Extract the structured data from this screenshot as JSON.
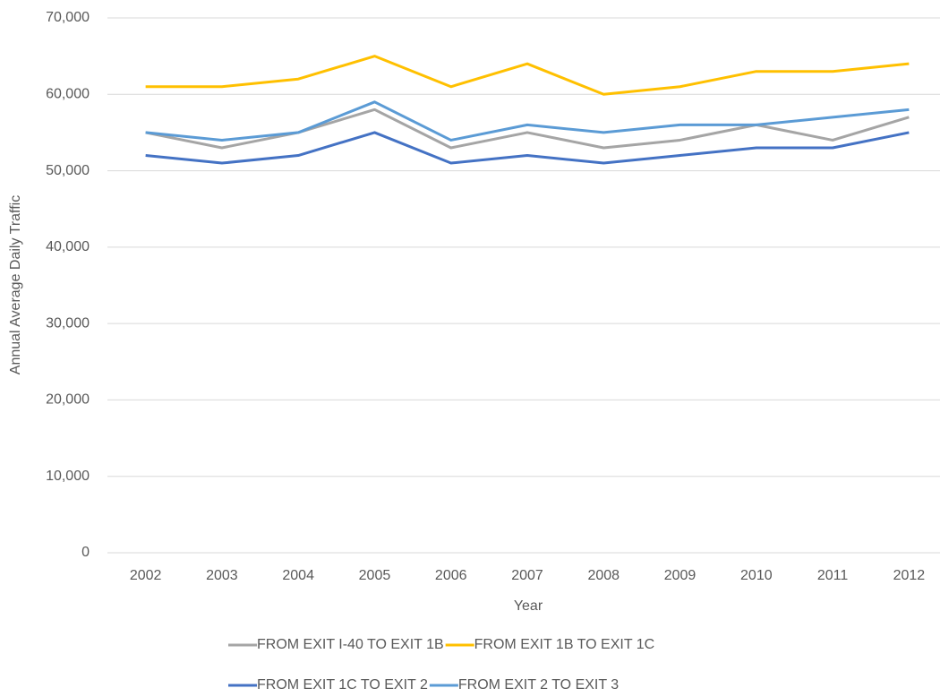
{
  "chart_data": {
    "type": "line",
    "x_label": "Year",
    "y_label": "Annual Average Daily Traffic",
    "categories": [
      "2002",
      "2003",
      "2004",
      "2005",
      "2006",
      "2007",
      "2008",
      "2009",
      "2010",
      "2011",
      "2012"
    ],
    "series": [
      {
        "name": "FROM EXIT I-40 TO EXIT 1B",
        "color": "#a5a5a5",
        "values": [
          55000,
          53000,
          55000,
          58000,
          53000,
          55000,
          53000,
          54000,
          56000,
          54000,
          57000
        ]
      },
      {
        "name": "FROM EXIT 1B TO EXIT 1C",
        "color": "#ffc000",
        "values": [
          61000,
          61000,
          62000,
          65000,
          61000,
          64000,
          60000,
          61000,
          63000,
          63000,
          64000
        ]
      },
      {
        "name": "FROM EXIT 1C TO EXIT 2",
        "color": "#4472c4",
        "values": [
          52000,
          51000,
          52000,
          55000,
          51000,
          52000,
          51000,
          52000,
          53000,
          53000,
          55000
        ]
      },
      {
        "name": "FROM EXIT 2 TO EXIT 3",
        "color": "#5b9bd5",
        "values": [
          55000,
          54000,
          55000,
          59000,
          54000,
          56000,
          55000,
          56000,
          56000,
          57000,
          58000
        ]
      }
    ],
    "ylim": [
      0,
      70000
    ],
    "yticks": [
      0,
      {
        "value": 10000,
        "label": "10,000"
      },
      {
        "value": 20000,
        "label": "20,000"
      },
      {
        "value": 30000,
        "label": "30,000"
      },
      {
        "value": 40000,
        "label": "40,000"
      },
      {
        "value": 50000,
        "label": "50,000"
      },
      {
        "value": 60000,
        "label": "60,000"
      },
      {
        "value": 70000,
        "label": "70,000"
      }
    ],
    "grid": true,
    "legend": "bottom"
  }
}
